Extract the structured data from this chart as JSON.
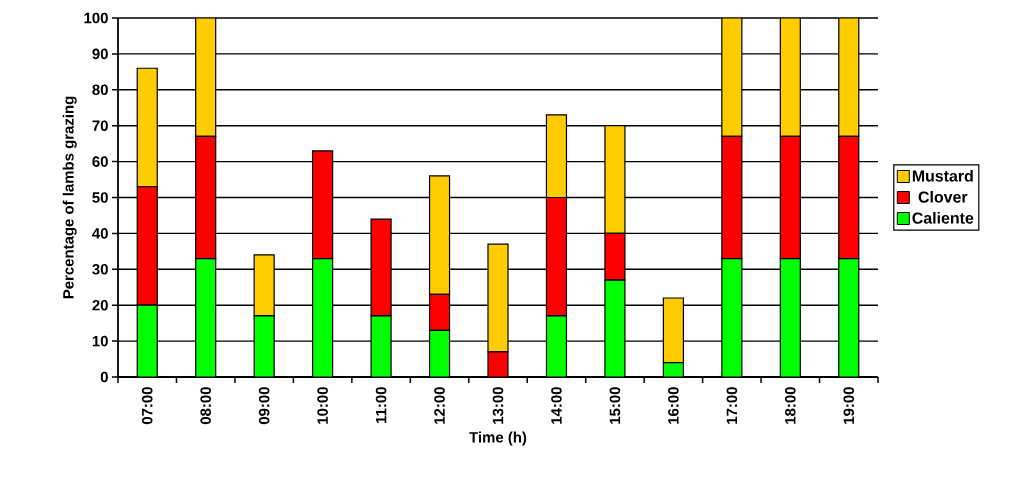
{
  "chart_data": {
    "type": "bar",
    "stacked": true,
    "xlabel": "Time (h)",
    "ylabel": "Percentage of lambs grazing",
    "categories": [
      "07:00",
      "08:00",
      "09:00",
      "10:00",
      "11:00",
      "12:00",
      "13:00",
      "14:00",
      "15:00",
      "16:00",
      "17:00",
      "18:00",
      "19:00"
    ],
    "series": [
      {
        "name": "Caliente",
        "color": "#00ff00",
        "values": [
          20,
          33,
          17,
          33,
          17,
          13,
          0,
          17,
          27,
          4,
          33,
          33,
          33
        ]
      },
      {
        "name": "Clover",
        "color": "#ff0000",
        "values": [
          33,
          34,
          0,
          30,
          27,
          10,
          7,
          33,
          13,
          0,
          34,
          34,
          34
        ]
      },
      {
        "name": "Mustard",
        "color": "#ffcc00",
        "values": [
          33,
          33,
          17,
          0,
          0,
          33,
          30,
          23,
          30,
          18,
          33,
          33,
          33
        ]
      }
    ],
    "ylim": [
      0,
      100
    ],
    "yticks": [
      0,
      10,
      20,
      30,
      40,
      50,
      60,
      70,
      80,
      90,
      100
    ],
    "grid": "y",
    "legend": "right"
  }
}
